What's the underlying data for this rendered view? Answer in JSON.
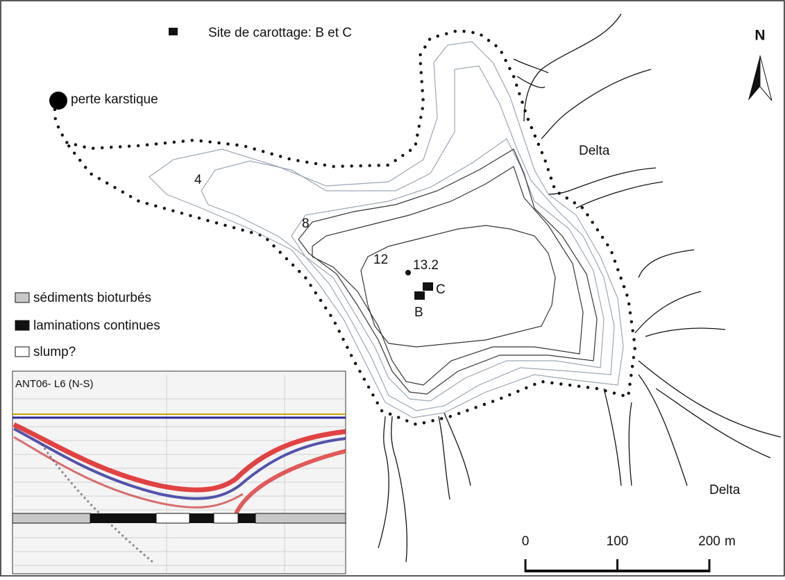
{
  "header": {
    "legend_site": "Site de carottage:  B et C",
    "north": "N"
  },
  "labels": {
    "karst": "perte karstique",
    "delta_1": "Delta",
    "delta_2": "Delta",
    "site_b": "B",
    "site_c": "C"
  },
  "contours": [
    4,
    8,
    12
  ],
  "max_depth": 13.2,
  "legend": {
    "items": [
      "sédiments bioturbés",
      "laminations continues",
      "slump?"
    ]
  },
  "profile": {
    "title": "ANT06- L6 (N-S)"
  },
  "scale": {
    "ticks": [
      0,
      100,
      200
    ],
    "unit": "m"
  }
}
